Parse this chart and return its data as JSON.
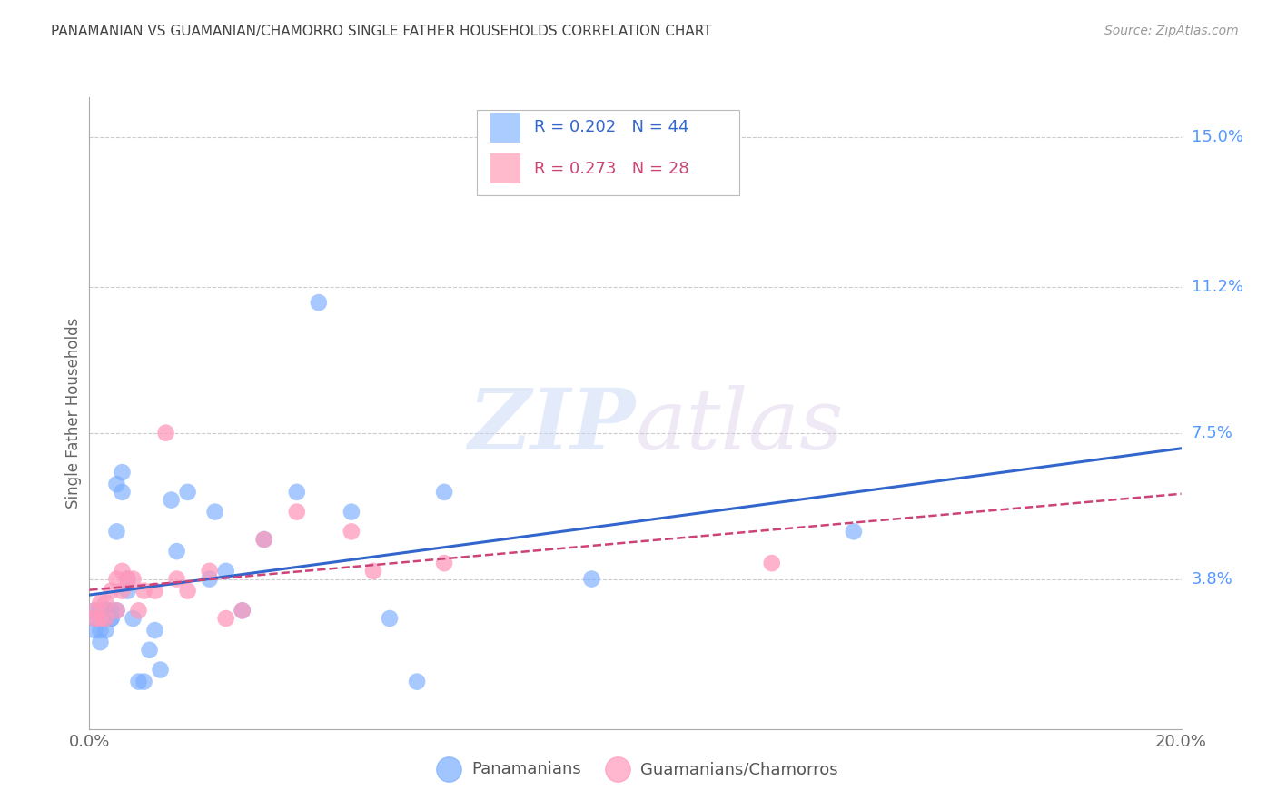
{
  "title": "PANAMANIAN VS GUAMANIAN/CHAMORRO SINGLE FATHER HOUSEHOLDS CORRELATION CHART",
  "source": "Source: ZipAtlas.com",
  "ylabel": "Single Father Households",
  "xlabel": "",
  "watermark": "ZIPatlas",
  "xlim": [
    0.0,
    0.2
  ],
  "ylim": [
    0.0,
    0.16
  ],
  "xticks": [
    0.0,
    0.04,
    0.08,
    0.12,
    0.16,
    0.2
  ],
  "xticklabels": [
    "0.0%",
    "",
    "",
    "",
    "",
    "20.0%"
  ],
  "ytick_values": [
    0.038,
    0.075,
    0.112,
    0.15
  ],
  "ytick_labels": [
    "3.8%",
    "7.5%",
    "11.2%",
    "15.0%"
  ],
  "series1_name": "Panamanians",
  "series1_color": "#7aadff",
  "series1_R": 0.202,
  "series1_N": 44,
  "series1_line_color": "#3366cc",
  "series1_x": [
    0.001,
    0.001,
    0.001,
    0.002,
    0.002,
    0.002,
    0.002,
    0.003,
    0.003,
    0.003,
    0.003,
    0.003,
    0.004,
    0.004,
    0.004,
    0.005,
    0.005,
    0.005,
    0.006,
    0.006,
    0.007,
    0.007,
    0.008,
    0.009,
    0.01,
    0.011,
    0.012,
    0.013,
    0.015,
    0.016,
    0.018,
    0.022,
    0.023,
    0.025,
    0.028,
    0.032,
    0.038,
    0.042,
    0.048,
    0.055,
    0.06,
    0.065,
    0.092,
    0.14
  ],
  "series1_y": [
    0.028,
    0.03,
    0.025,
    0.028,
    0.025,
    0.03,
    0.022,
    0.03,
    0.028,
    0.025,
    0.03,
    0.03,
    0.028,
    0.03,
    0.028,
    0.03,
    0.05,
    0.062,
    0.06,
    0.065,
    0.035,
    0.038,
    0.028,
    0.012,
    0.012,
    0.02,
    0.025,
    0.015,
    0.058,
    0.045,
    0.06,
    0.038,
    0.055,
    0.04,
    0.03,
    0.048,
    0.06,
    0.108,
    0.055,
    0.028,
    0.012,
    0.06,
    0.038,
    0.05
  ],
  "series2_name": "Guamanians/Chamorros",
  "series2_color": "#ff99bb",
  "series2_R": 0.273,
  "series2_N": 28,
  "series2_line_color": "#cc4477",
  "series2_x": [
    0.001,
    0.001,
    0.002,
    0.002,
    0.003,
    0.003,
    0.004,
    0.005,
    0.005,
    0.006,
    0.006,
    0.007,
    0.008,
    0.009,
    0.01,
    0.012,
    0.014,
    0.016,
    0.018,
    0.022,
    0.025,
    0.028,
    0.032,
    0.038,
    0.048,
    0.052,
    0.065,
    0.125
  ],
  "series2_y": [
    0.028,
    0.03,
    0.028,
    0.032,
    0.028,
    0.032,
    0.035,
    0.03,
    0.038,
    0.04,
    0.035,
    0.038,
    0.038,
    0.03,
    0.035,
    0.035,
    0.075,
    0.038,
    0.035,
    0.04,
    0.028,
    0.03,
    0.048,
    0.055,
    0.05,
    0.04,
    0.042,
    0.042
  ],
  "background_color": "#ffffff",
  "grid_color": "#cccccc",
  "title_color": "#444444",
  "axis_color": "#aaaaaa",
  "right_label_color": "#5599ff",
  "legend_box_color_1": "#aaccff",
  "legend_box_color_2": "#ffbbcc"
}
